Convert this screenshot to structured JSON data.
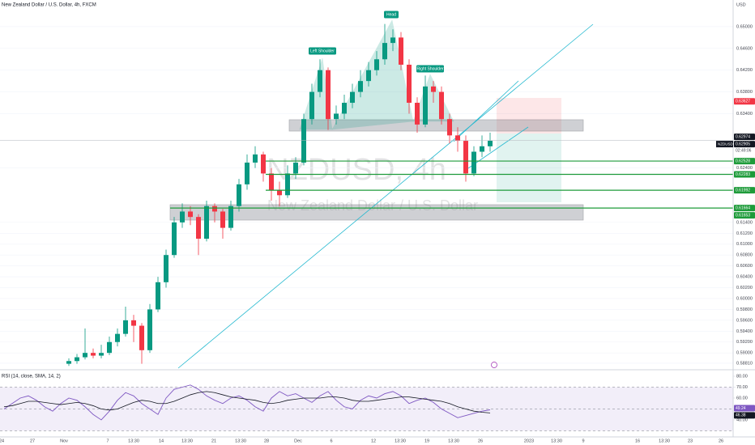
{
  "chart_data": [
    {
      "type": "candlestick",
      "title": "New Zealand Dollar / U.S. Dollar, 4h, FXCM",
      "currency": "USD",
      "symbol": "NZDUSD",
      "countdown": "02:49:06",
      "watermark": [
        "NZDUSD, 4h",
        "New Zealand Dollar / U.S. Dollar"
      ],
      "open": [
        0.588,
        0.5885,
        0.5892,
        0.59,
        0.5895,
        0.59,
        0.592,
        0.5935,
        0.596,
        0.595,
        0.5905,
        0.598,
        0.603,
        0.608,
        0.614,
        0.616,
        0.615,
        0.611,
        0.617,
        0.616,
        0.613,
        0.617,
        0.621,
        0.625,
        0.6265,
        0.623,
        0.62,
        0.619,
        0.623,
        0.625,
        0.633,
        0.638,
        0.642,
        0.633,
        0.634,
        0.636,
        0.638,
        0.64,
        0.642,
        0.644,
        0.647,
        0.648,
        0.643,
        0.636,
        0.632,
        0.639,
        0.638,
        0.633,
        0.63,
        0.629,
        0.623,
        0.627,
        0.628
      ],
      "high": [
        0.589,
        0.5898,
        0.5945,
        0.5908,
        0.5915,
        0.593,
        0.5945,
        0.5985,
        0.597,
        0.5955,
        0.599,
        0.604,
        0.609,
        0.615,
        0.6175,
        0.617,
        0.6155,
        0.618,
        0.6175,
        0.6165,
        0.618,
        0.622,
        0.6265,
        0.628,
        0.627,
        0.624,
        0.6215,
        0.6245,
        0.626,
        0.634,
        0.6395,
        0.644,
        0.6425,
        0.6355,
        0.6375,
        0.6395,
        0.642,
        0.6435,
        0.6455,
        0.6505,
        0.6495,
        0.649,
        0.644,
        0.637,
        0.641,
        0.64,
        0.639,
        0.634,
        0.6315,
        0.63,
        0.628,
        0.63,
        0.6305
      ],
      "low": [
        0.5876,
        0.588,
        0.5888,
        0.589,
        0.589,
        0.5896,
        0.5912,
        0.593,
        0.592,
        0.588,
        0.59,
        0.5975,
        0.602,
        0.6075,
        0.613,
        0.6135,
        0.608,
        0.6105,
        0.614,
        0.611,
        0.6125,
        0.616,
        0.62,
        0.624,
        0.6215,
        0.618,
        0.617,
        0.6185,
        0.622,
        0.6245,
        0.632,
        0.637,
        0.631,
        0.632,
        0.633,
        0.635,
        0.637,
        0.639,
        0.641,
        0.643,
        0.6455,
        0.642,
        0.634,
        0.6305,
        0.6315,
        0.636,
        0.632,
        0.6285,
        0.627,
        0.6215,
        0.6225,
        0.626,
        0.627
      ],
      "close": [
        0.5885,
        0.5892,
        0.59,
        0.5895,
        0.59,
        0.592,
        0.5935,
        0.596,
        0.595,
        0.5905,
        0.598,
        0.603,
        0.608,
        0.614,
        0.616,
        0.615,
        0.611,
        0.617,
        0.616,
        0.613,
        0.617,
        0.621,
        0.625,
        0.6265,
        0.623,
        0.62,
        0.619,
        0.623,
        0.625,
        0.633,
        0.638,
        0.642,
        0.633,
        0.634,
        0.636,
        0.638,
        0.64,
        0.642,
        0.644,
        0.647,
        0.648,
        0.643,
        0.636,
        0.632,
        0.639,
        0.638,
        0.633,
        0.63,
        0.629,
        0.623,
        0.627,
        0.628,
        0.62905
      ],
      "up_color": "#089981",
      "down_color": "#f23645",
      "ylim": [
        0.5872,
        0.6549
      ],
      "yticks": [
        {
          "value": 0.65,
          "label": "0.65000"
        },
        {
          "value": 0.646,
          "label": "0.64600"
        },
        {
          "value": 0.642,
          "label": "0.64200"
        },
        {
          "value": 0.638,
          "label": "0.63800"
        },
        {
          "value": 0.634,
          "label": "0.63400"
        },
        {
          "value": 0.624,
          "label": "0.62400"
        },
        {
          "value": 0.614,
          "label": "0.61400"
        },
        {
          "value": 0.612,
          "label": "0.61200"
        },
        {
          "value": 0.61,
          "label": "0.61000"
        },
        {
          "value": 0.608,
          "label": "0.60800"
        },
        {
          "value": 0.606,
          "label": "0.60600"
        },
        {
          "value": 0.604,
          "label": "0.60400"
        },
        {
          "value": 0.602,
          "label": "0.60200"
        },
        {
          "value": 0.6,
          "label": "0.60000"
        },
        {
          "value": 0.598,
          "label": "0.59800"
        },
        {
          "value": 0.596,
          "label": "0.59600"
        },
        {
          "value": 0.594,
          "label": "0.59400"
        },
        {
          "value": 0.592,
          "label": "0.59200"
        },
        {
          "value": 0.59,
          "label": "0.59000"
        },
        {
          "value": 0.5881,
          "label": "0.58810"
        }
      ],
      "grid": true,
      "levels": [
        {
          "value": 0.63627,
          "color": "#f23645"
        },
        {
          "value": 0.62974,
          "color": "#131722"
        },
        {
          "value": 0.62905,
          "color": "#131722"
        },
        {
          "value": 0.62528,
          "color": "#1e9b3a"
        },
        {
          "value": 0.62283,
          "color": "#1e9b3a"
        },
        {
          "value": 0.61992,
          "color": "#1e9b3a"
        },
        {
          "value": 0.61664,
          "color": "#1e9b3a"
        },
        {
          "value": 0.61653,
          "color": "#1e9b3a"
        }
      ],
      "annotations": [
        "Left Shoulder",
        "Head",
        "Right Shoulder"
      ],
      "x_labels": [
        "24",
        "27",
        "Nov",
        "7",
        "13:30",
        "14",
        "13:30",
        "21",
        "13:30",
        "28",
        "Dec",
        "6",
        "12",
        "13:30",
        "19",
        "13:30",
        "26",
        "2023",
        "13:30",
        "9",
        "16",
        "13:30",
        "23",
        "26"
      ]
    },
    {
      "type": "line",
      "title": "RSI (14, close, SMA, 14, 2)",
      "series": [
        {
          "color": "#7e57c2",
          "values": [
            50,
            55,
            60,
            62,
            58,
            52,
            48,
            55,
            60,
            58,
            52,
            45,
            40,
            48,
            58,
            65,
            62,
            55,
            50,
            45,
            60,
            68,
            70,
            72,
            68,
            62,
            58,
            55,
            60,
            62,
            58,
            52,
            48,
            60,
            66,
            62,
            64,
            60,
            56,
            62,
            66,
            58,
            52,
            50,
            58,
            62,
            60,
            64,
            66,
            62,
            55,
            58,
            60,
            56,
            50,
            46,
            42,
            44,
            46,
            48,
            49.24
          ]
        },
        {
          "color": "#131722",
          "values": [
            52,
            53,
            55,
            57,
            57,
            56,
            55,
            54,
            55,
            56,
            55,
            53,
            50,
            49,
            50,
            53,
            56,
            58,
            57,
            55,
            55,
            57,
            60,
            63,
            65,
            66,
            65,
            63,
            61,
            60,
            59,
            58,
            56,
            55,
            56,
            58,
            59,
            60,
            60,
            60,
            61,
            61,
            60,
            58,
            57,
            57,
            58,
            59,
            60,
            61,
            61,
            60,
            59,
            58,
            57,
            55,
            52,
            50,
            48,
            47,
            46.38
          ]
        }
      ],
      "ylim": [
        24.4,
        85.2
      ],
      "yticks": [
        {
          "value": 80,
          "label": "80.00"
        },
        {
          "value": 70,
          "label": "70.00"
        },
        {
          "value": 60,
          "label": "60.00"
        },
        {
          "value": 40,
          "label": "40.00"
        }
      ],
      "bands": [
        70,
        50,
        30
      ]
    }
  ]
}
